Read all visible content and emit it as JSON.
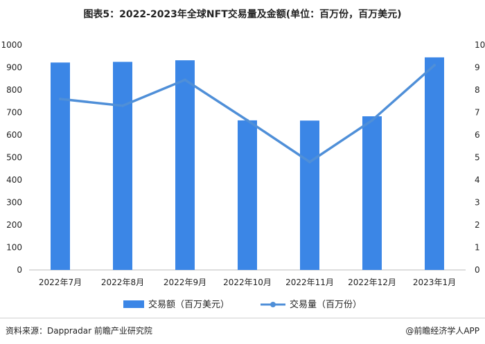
{
  "chart_data": {
    "type": "bar",
    "title": "图表5：2022-2023年全球NFT交易量及金额(单位：百万份，百万美元)",
    "categories": [
      "2022年7月",
      "2022年8月",
      "2022年9月",
      "2022年10月",
      "2022年11月",
      "2022年12月",
      "2023年1月"
    ],
    "series": [
      {
        "name": "交易额（百万美元）",
        "type": "bar",
        "axis": "left",
        "values": [
          922,
          925,
          932,
          665,
          664,
          683,
          945
        ]
      },
      {
        "name": "交易量（百万份）",
        "type": "line",
        "axis": "right",
        "values": [
          7.6,
          7.3,
          8.45,
          6.65,
          4.8,
          6.65,
          9.1
        ]
      }
    ],
    "ylim_left": [
      0,
      1000
    ],
    "yticks_left": [
      "0",
      "100",
      "200",
      "300",
      "400",
      "500",
      "600",
      "700",
      "800",
      "900",
      "1000"
    ],
    "ylim_right": [
      0,
      10
    ],
    "yticks_right": [
      "0",
      "1",
      "2",
      "3",
      "4",
      "5",
      "6",
      "7",
      "8",
      "9",
      "10"
    ],
    "grid": false,
    "legend_position": "bottom",
    "colors": {
      "bar": "#3b86e6",
      "line": "#4f8fd8"
    }
  },
  "footer": {
    "source": "资料来源：Dappradar 前瞻产业研究院",
    "brand": "@前瞻经济学人APP"
  }
}
